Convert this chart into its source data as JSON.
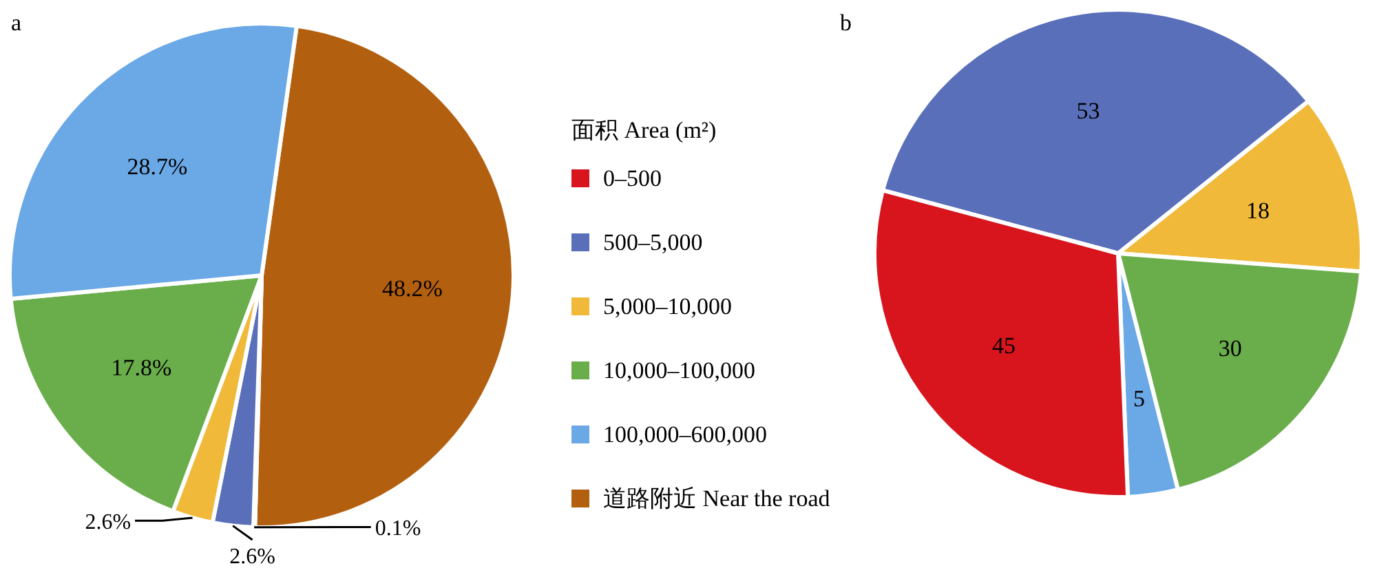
{
  "chart_data": [
    {
      "type": "pie",
      "title": "a",
      "legend_title": "面积 Area (m²)",
      "legend": "right",
      "categories": [
        "0–500",
        "500–5,000",
        "5,000–10,000",
        "10,000–100,000",
        "100,000–600,000",
        "道路附近 Near the road"
      ],
      "values": [
        0.1,
        2.6,
        2.6,
        17.8,
        28.7,
        48.2
      ],
      "value_labels": [
        "0.1%",
        "2.6%",
        "2.6%",
        "17.8%",
        "28.7%",
        "48.2%"
      ],
      "colors": [
        "#d8141c",
        "#5a6fba",
        "#f0b93a",
        "#6aad4b",
        "#6aa8e6",
        "#b35f10"
      ]
    },
    {
      "type": "pie",
      "title": "b",
      "data_labels": true,
      "categories": [
        null,
        null,
        null,
        null,
        null
      ],
      "values": [
        45,
        53,
        18,
        30,
        5
      ],
      "colors": [
        "#d8141c",
        "#5a6fba",
        "#f0b93a",
        "#6aad4b",
        "#6aa8e6"
      ]
    }
  ]
}
